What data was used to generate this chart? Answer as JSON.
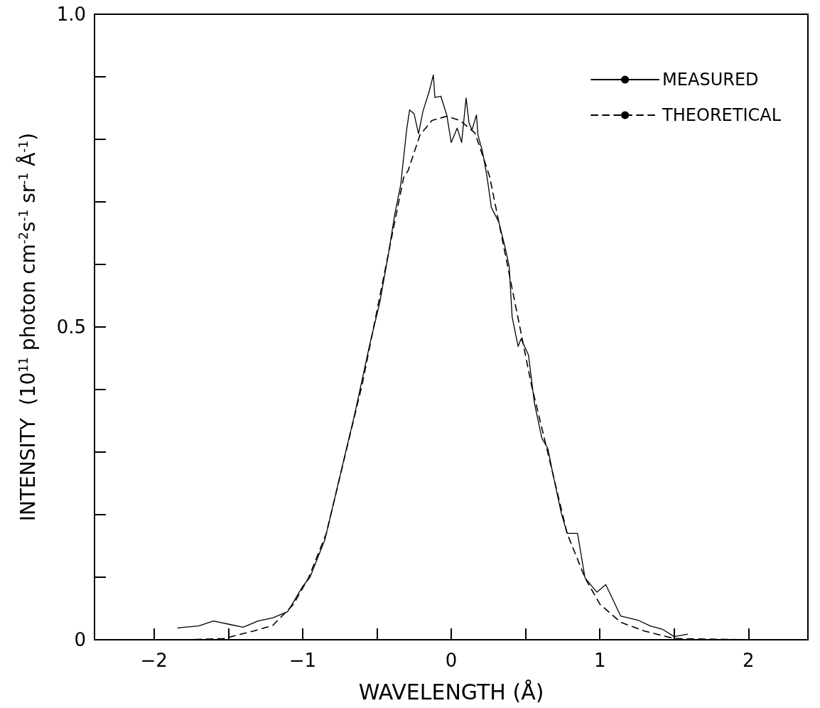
{
  "chart_data": {
    "type": "line",
    "xlabel": "WAVELENGTH (Å)",
    "ylabel": "INTENSITY  (10$^{11}$ photon cm$^{-2}$s$^{-1}$ sr$^{-1}$ Å$^{-1}$)",
    "xlim": [
      -2.4,
      2.4
    ],
    "xticks": [
      -2,
      {
        "value": -1.5,
        "label": null
      },
      -1,
      {
        "value": -0.5,
        "label": null
      },
      0,
      {
        "value": 0.5,
        "label": null
      },
      1,
      {
        "value": 1.5,
        "label": null
      },
      2
    ],
    "ylim": [
      0,
      1
    ],
    "yticks": [
      0,
      {
        "value": 0.1,
        "label": null
      },
      {
        "value": 0.2,
        "label": null
      },
      {
        "value": 0.3,
        "label": null
      },
      {
        "value": 0.4,
        "label": null
      },
      0.5,
      {
        "value": 0.6,
        "label": null
      },
      {
        "value": 0.7,
        "label": null
      },
      {
        "value": 0.8,
        "label": null
      },
      {
        "value": 0.9,
        "label": null
      },
      {
        "value": 1,
        "label": "1.0"
      }
    ],
    "grid": false,
    "legend": "top right",
    "marker": "none",
    "series": [
      {
        "name": "MEASURED",
        "color": "#000000",
        "line_style": "solid",
        "x": [
          -1.84,
          -1.7,
          -1.6,
          -1.5,
          -1.4,
          -1.3,
          -1.2,
          -1.1,
          -1.0,
          -0.95,
          -0.85,
          -0.75,
          -0.65,
          -0.55,
          -0.48,
          -0.42,
          -0.38,
          -0.34,
          -0.3,
          -0.28,
          -0.25,
          -0.22,
          -0.19,
          -0.15,
          -0.12,
          -0.11,
          -0.07,
          -0.03,
          0.0,
          0.04,
          0.07,
          0.1,
          0.12,
          0.14,
          0.17,
          0.18,
          0.21,
          0.24,
          0.27,
          0.32,
          0.36,
          0.39,
          0.41,
          0.45,
          0.47,
          0.52,
          0.56,
          0.61,
          0.65,
          0.68,
          0.74,
          0.78,
          0.85,
          0.9,
          0.98,
          1.04,
          1.14,
          1.26,
          1.34,
          1.42,
          1.5,
          1.59
        ],
        "values": [
          0.019,
          0.022,
          0.03,
          0.025,
          0.02,
          0.03,
          0.035,
          0.045,
          0.085,
          0.1,
          0.16,
          0.26,
          0.36,
          0.47,
          0.54,
          0.62,
          0.68,
          0.727,
          0.815,
          0.847,
          0.841,
          0.809,
          0.845,
          0.875,
          0.903,
          0.867,
          0.869,
          0.839,
          0.795,
          0.818,
          0.795,
          0.866,
          0.826,
          0.815,
          0.839,
          0.807,
          0.781,
          0.742,
          0.691,
          0.668,
          0.63,
          0.597,
          0.516,
          0.469,
          0.481,
          0.455,
          0.378,
          0.322,
          0.306,
          0.27,
          0.203,
          0.17,
          0.17,
          0.099,
          0.076,
          0.088,
          0.038,
          0.031,
          0.022,
          0.017,
          0.005,
          0.009
        ]
      },
      {
        "name": "THEORETICAL",
        "color": "#000000",
        "line_style": "dashed",
        "x": [
          -1.8,
          -1.53,
          -1.33,
          -1.2,
          -1.06,
          -0.96,
          -0.84,
          -0.72,
          -0.6,
          -0.52,
          -0.44,
          -0.32,
          -0.29,
          -0.21,
          -0.13,
          -0.03,
          0.06,
          0.16,
          0.24,
          0.26,
          0.38,
          0.46,
          0.54,
          0.66,
          0.78,
          0.9,
          1.0,
          1.14,
          1.3,
          1.5,
          2.01
        ],
        "values": [
          0,
          0.002,
          0.014,
          0.023,
          0.057,
          0.099,
          0.17,
          0.289,
          0.407,
          0.502,
          0.597,
          0.739,
          0.75,
          0.807,
          0.83,
          0.837,
          0.83,
          0.81,
          0.754,
          0.739,
          0.597,
          0.502,
          0.407,
          0.289,
          0.17,
          0.099,
          0.057,
          0.028,
          0.014,
          0.002,
          0
        ]
      }
    ]
  }
}
